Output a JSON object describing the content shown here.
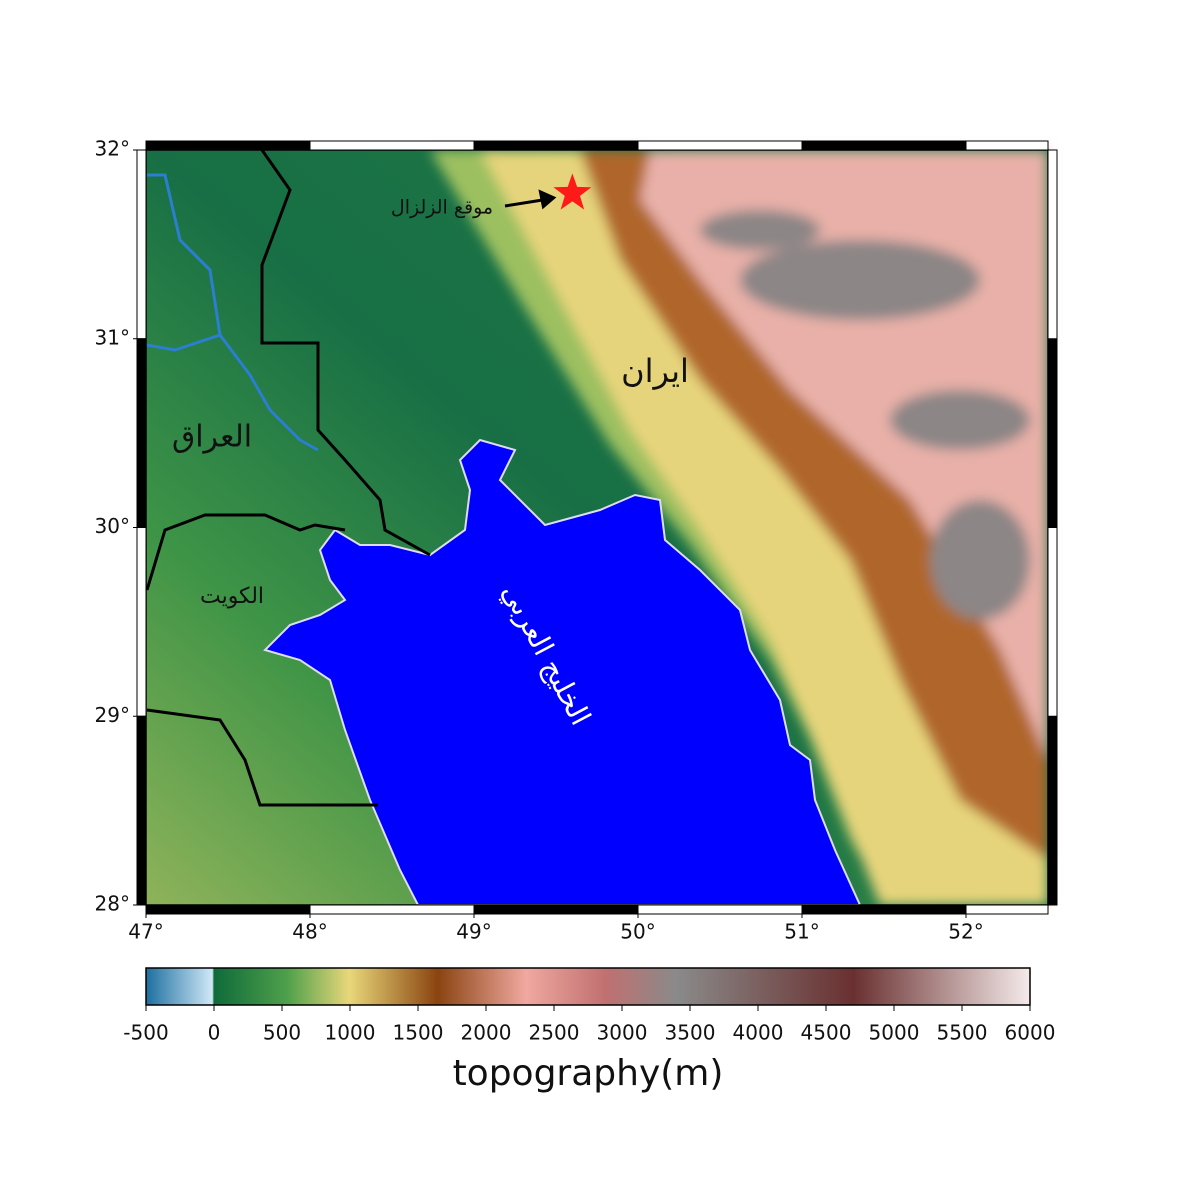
{
  "map": {
    "xlim": [
      47,
      52.5
    ],
    "ylim": [
      28,
      32
    ],
    "xticks": [
      {
        "value": 47,
        "label": "47°"
      },
      {
        "value": 48,
        "label": "48°"
      },
      {
        "value": 49,
        "label": "49°"
      },
      {
        "value": 50,
        "label": "50°"
      },
      {
        "value": 51,
        "label": "51°"
      },
      {
        "value": 52,
        "label": "52°"
      }
    ],
    "yticks": [
      {
        "value": 28,
        "label": "28°"
      },
      {
        "value": 29,
        "label": "29°"
      },
      {
        "value": 30,
        "label": "30°"
      },
      {
        "value": 31,
        "label": "31°"
      },
      {
        "value": 32,
        "label": "32°"
      }
    ],
    "labels": {
      "iran": "ايران",
      "iraq": "العراق",
      "kuwait": "الكويت",
      "gulf": "الخليج العربي"
    },
    "epicenter": {
      "annotation": "موقع الزلزال",
      "lon": 49.6,
      "lat": 31.77,
      "color": "#ff1a1a"
    },
    "colorbar": {
      "label": "topography(m)",
      "lim": [
        -500,
        6000
      ],
      "ticks": [
        -500,
        0,
        500,
        1000,
        1500,
        2000,
        2500,
        3000,
        3500,
        4000,
        4500,
        5000,
        5500,
        6000
      ]
    }
  }
}
